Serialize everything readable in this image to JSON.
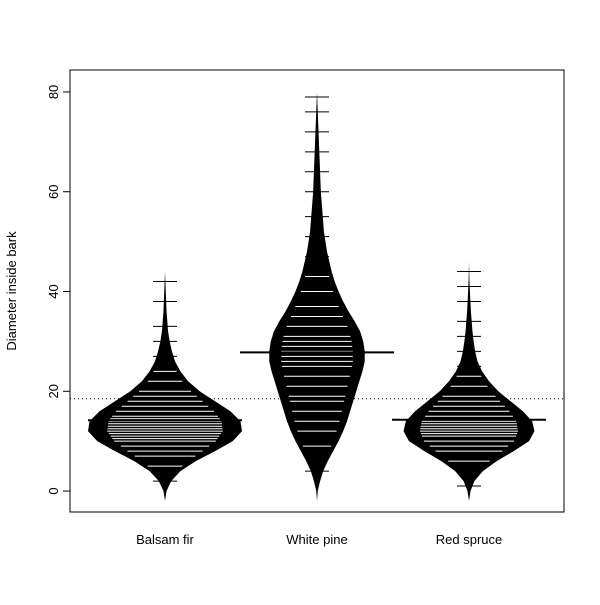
{
  "chart_data": {
    "type": "beanplot",
    "ylabel": "Diameter inside bark",
    "categories": [
      "Balsam fir",
      "White pine",
      "Red spruce"
    ],
    "ylim": [
      -4.2,
      84.4
    ],
    "yticks": [
      0,
      20,
      40,
      60,
      80
    ],
    "overall_mean": 18.5,
    "density_y": [
      -2,
      0,
      2,
      4,
      6,
      8,
      10,
      12,
      14,
      16,
      18,
      20,
      22,
      24,
      26,
      28,
      30,
      32,
      34,
      36,
      38,
      40,
      42,
      44,
      46,
      48,
      50,
      52,
      54,
      56,
      58,
      60,
      62,
      64,
      66,
      68,
      70,
      72,
      74,
      76,
      78,
      80,
      82
    ],
    "color": "#000000",
    "series": [
      {
        "name": "Balsam fir",
        "mean": 14.2,
        "density": [
          0,
          0.02,
          0.08,
          0.2,
          0.4,
          0.65,
          0.88,
          1.0,
          0.98,
          0.85,
          0.65,
          0.45,
          0.3,
          0.2,
          0.13,
          0.09,
          0.06,
          0.04,
          0.03,
          0.02,
          0.015,
          0.01,
          0.005,
          0,
          0,
          0,
          0,
          0,
          0,
          0,
          0,
          0,
          0,
          0,
          0,
          0,
          0,
          0,
          0,
          0,
          0,
          0,
          0
        ],
        "observations": [
          2,
          5,
          7,
          8,
          9,
          10,
          10.5,
          11,
          11.5,
          12,
          12.5,
          13,
          13.5,
          14,
          14.5,
          15,
          16,
          17,
          18,
          19,
          20,
          22,
          24,
          27,
          30,
          33,
          38,
          42
        ]
      },
      {
        "name": "White pine",
        "mean": 27.8,
        "density": [
          0,
          0.01,
          0.04,
          0.08,
          0.14,
          0.21,
          0.28,
          0.34,
          0.39,
          0.43,
          0.47,
          0.51,
          0.55,
          0.59,
          0.62,
          0.62,
          0.6,
          0.56,
          0.49,
          0.41,
          0.34,
          0.28,
          0.23,
          0.19,
          0.16,
          0.13,
          0.11,
          0.09,
          0.08,
          0.07,
          0.06,
          0.05,
          0.045,
          0.04,
          0.035,
          0.03,
          0.025,
          0.02,
          0.015,
          0.01,
          0.005,
          0,
          0
        ],
        "observations": [
          4,
          7,
          9,
          12,
          14,
          16,
          18,
          19,
          21,
          23,
          25,
          26,
          27,
          28,
          29,
          30,
          31,
          33,
          35,
          37,
          40,
          43,
          47,
          51,
          55,
          60,
          64,
          68,
          72,
          76,
          79
        ]
      },
      {
        "name": "Red spruce",
        "mean": 14.3,
        "density": [
          0,
          0.02,
          0.07,
          0.18,
          0.36,
          0.58,
          0.78,
          0.85,
          0.82,
          0.7,
          0.54,
          0.38,
          0.26,
          0.17,
          0.11,
          0.08,
          0.06,
          0.045,
          0.035,
          0.025,
          0.018,
          0.012,
          0.006,
          0.003,
          0,
          0,
          0,
          0,
          0,
          0,
          0,
          0,
          0,
          0,
          0,
          0,
          0,
          0,
          0,
          0,
          0,
          0,
          0
        ],
        "observations": [
          1,
          4,
          6,
          8,
          9,
          10,
          11,
          11.5,
          12,
          12.5,
          13,
          13.5,
          14,
          15,
          16,
          17,
          18,
          19,
          21,
          23,
          25,
          28,
          31,
          34,
          38,
          41,
          44
        ]
      }
    ]
  }
}
